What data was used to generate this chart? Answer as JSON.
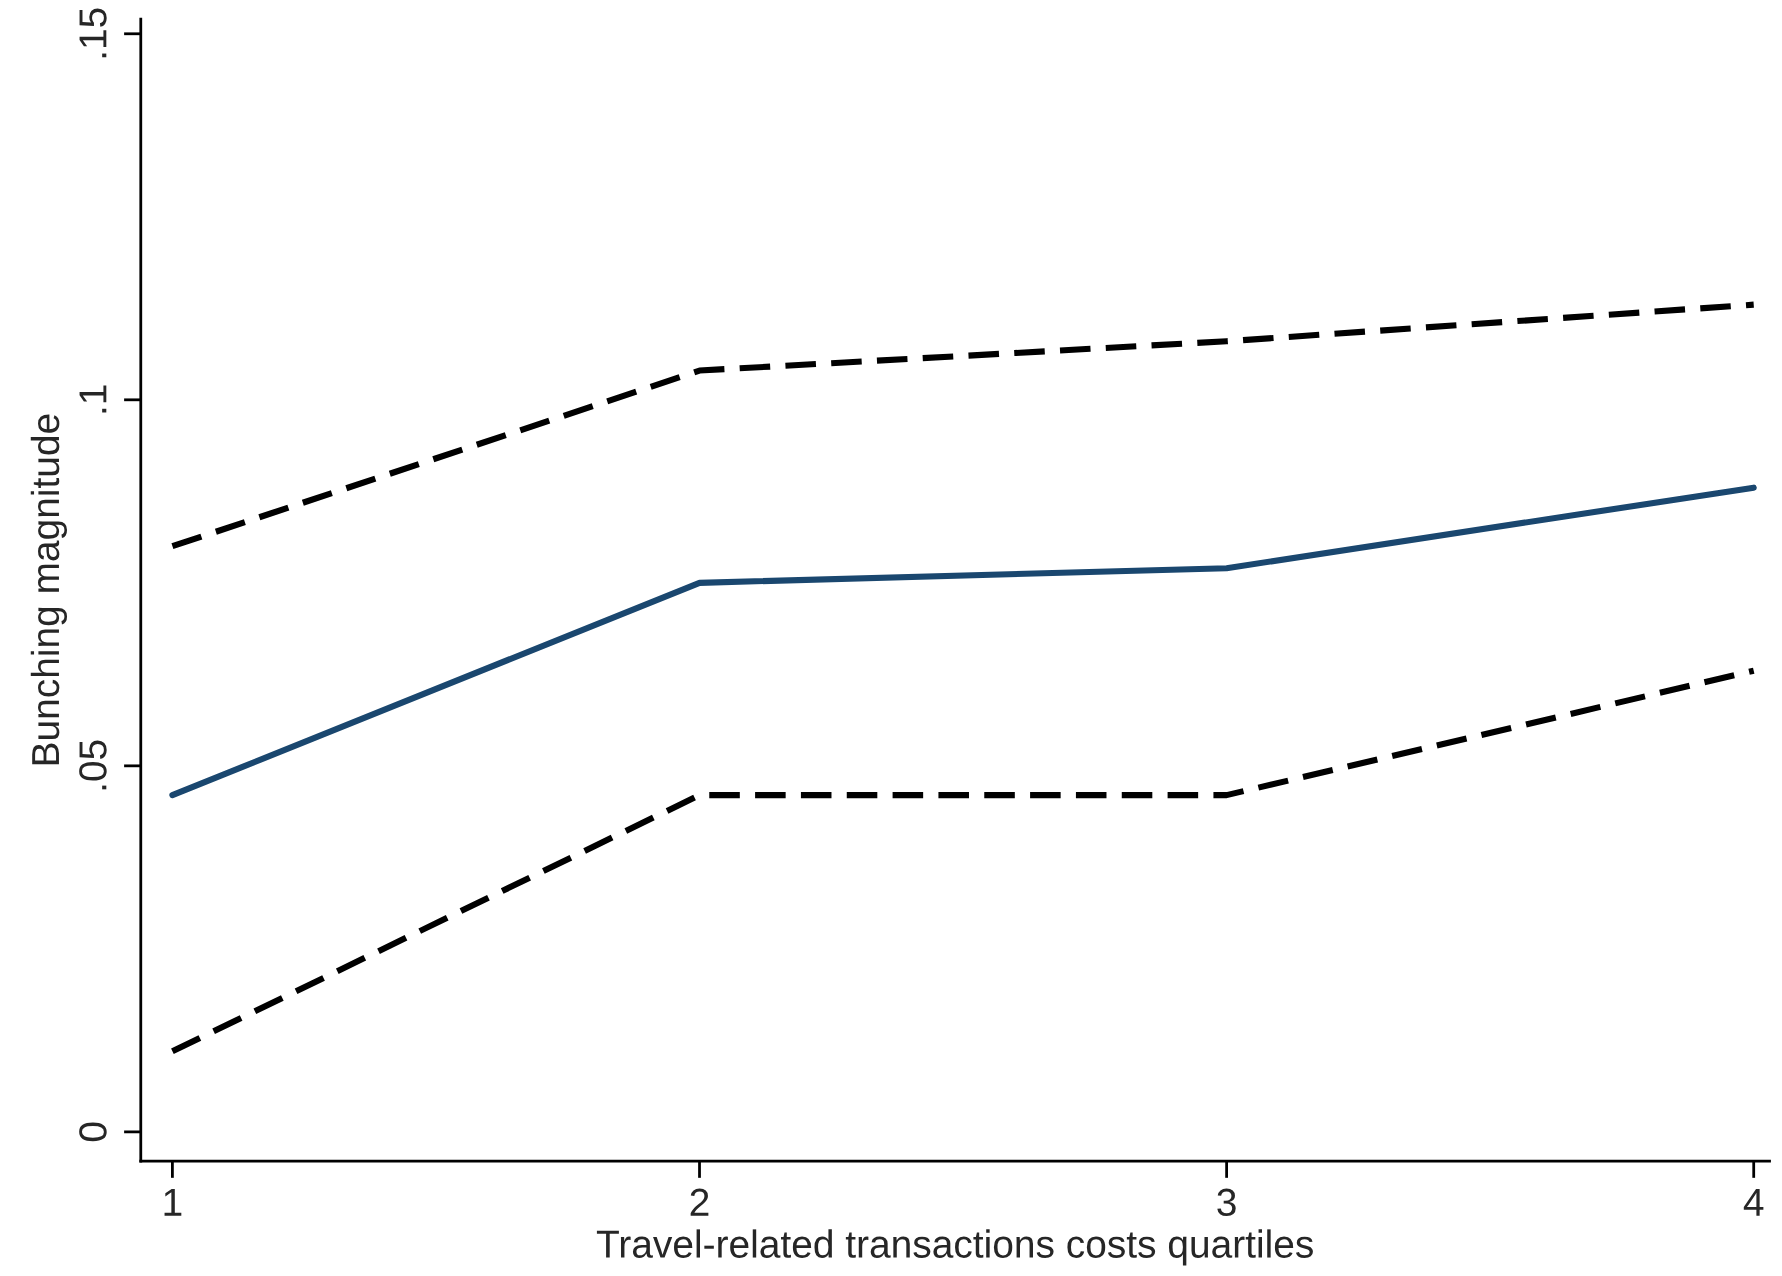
{
  "chart_data": {
    "type": "line",
    "xlabel": "Travel-related transactions costs quartiles",
    "ylabel": "Bunching magnitude",
    "x": [
      1,
      2,
      3,
      4
    ],
    "series": [
      {
        "color": "#000000",
        "line_style": "dashed",
        "values": [
          0.08,
          0.104,
          0.108,
          0.113
        ]
      },
      {
        "color": "#1a476f",
        "line_style": "solid",
        "values": [
          0.046,
          0.075,
          0.077,
          0.088
        ]
      },
      {
        "color": "#000000",
        "line_style": "dashed",
        "values": [
          0.011,
          0.046,
          0.046,
          0.063
        ]
      }
    ],
    "xlim": [
      0.94,
      4.03
    ],
    "ylim": [
      -0.004,
      0.152
    ],
    "xticks": [
      1,
      2,
      3,
      4
    ],
    "yticks": [
      {
        "value": 0,
        "label": "0"
      },
      {
        "value": 0.05,
        "label": ".05"
      },
      {
        "value": 0.1,
        "label": ".1"
      },
      {
        "value": 0.15,
        "label": ".15"
      }
    ],
    "grid": false,
    "legend": false,
    "marker": "none"
  }
}
